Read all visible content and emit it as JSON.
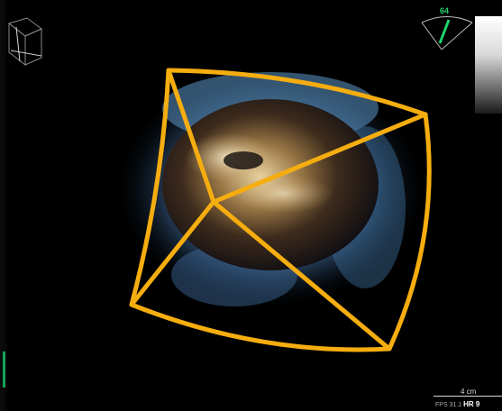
{
  "overlay": {
    "depth_value": "64",
    "scale_label": "4 cm",
    "fps_text": "FPS 31.1",
    "hr_text": "HR 9"
  },
  "colors": {
    "outline": "#f5ad0f",
    "depth_text": "#1fd36d",
    "background": "#000000"
  }
}
